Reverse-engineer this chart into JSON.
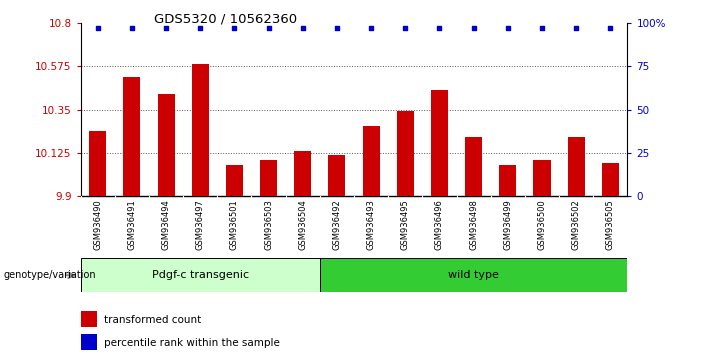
{
  "title": "GDS5320 / 10562360",
  "categories": [
    "GSM936490",
    "GSM936491",
    "GSM936494",
    "GSM936497",
    "GSM936501",
    "GSM936503",
    "GSM936504",
    "GSM936492",
    "GSM936493",
    "GSM936495",
    "GSM936496",
    "GSM936498",
    "GSM936499",
    "GSM936500",
    "GSM936502",
    "GSM936505"
  ],
  "bar_values": [
    10.24,
    10.52,
    10.43,
    10.585,
    10.065,
    10.09,
    10.135,
    10.115,
    10.265,
    10.345,
    10.455,
    10.21,
    10.065,
    10.09,
    10.21,
    10.075
  ],
  "percentile_values": [
    97,
    97,
    97,
    97,
    97,
    97,
    97,
    97,
    97,
    97,
    97,
    97,
    97,
    97,
    97,
    97
  ],
  "bar_color": "#cc0000",
  "percentile_color": "#0000cc",
  "ymin": 9.9,
  "ymax": 10.8,
  "yticks": [
    9.9,
    10.125,
    10.35,
    10.575,
    10.8
  ],
  "ytick_labels": [
    "9.9",
    "10.125",
    "10.35",
    "10.575",
    "10.8"
  ],
  "right_yticks": [
    0,
    25,
    50,
    75,
    100
  ],
  "right_ytick_labels": [
    "0",
    "25",
    "50",
    "75",
    "100%"
  ],
  "group1_label": "Pdgf-c transgenic",
  "group2_label": "wild type",
  "group1_color": "#ccffcc",
  "group2_color": "#33cc33",
  "group1_count": 7,
  "group2_count": 9,
  "genotype_label": "genotype/variation",
  "legend_bar_label": "transformed count",
  "legend_pct_label": "percentile rank within the sample",
  "dotted_line_color": "#555555",
  "bg_color": "#ffffff",
  "plot_bg_color": "#ffffff",
  "tick_area_bg": "#cccccc",
  "grid_dotted_lw": 0.7,
  "bar_width": 0.5
}
